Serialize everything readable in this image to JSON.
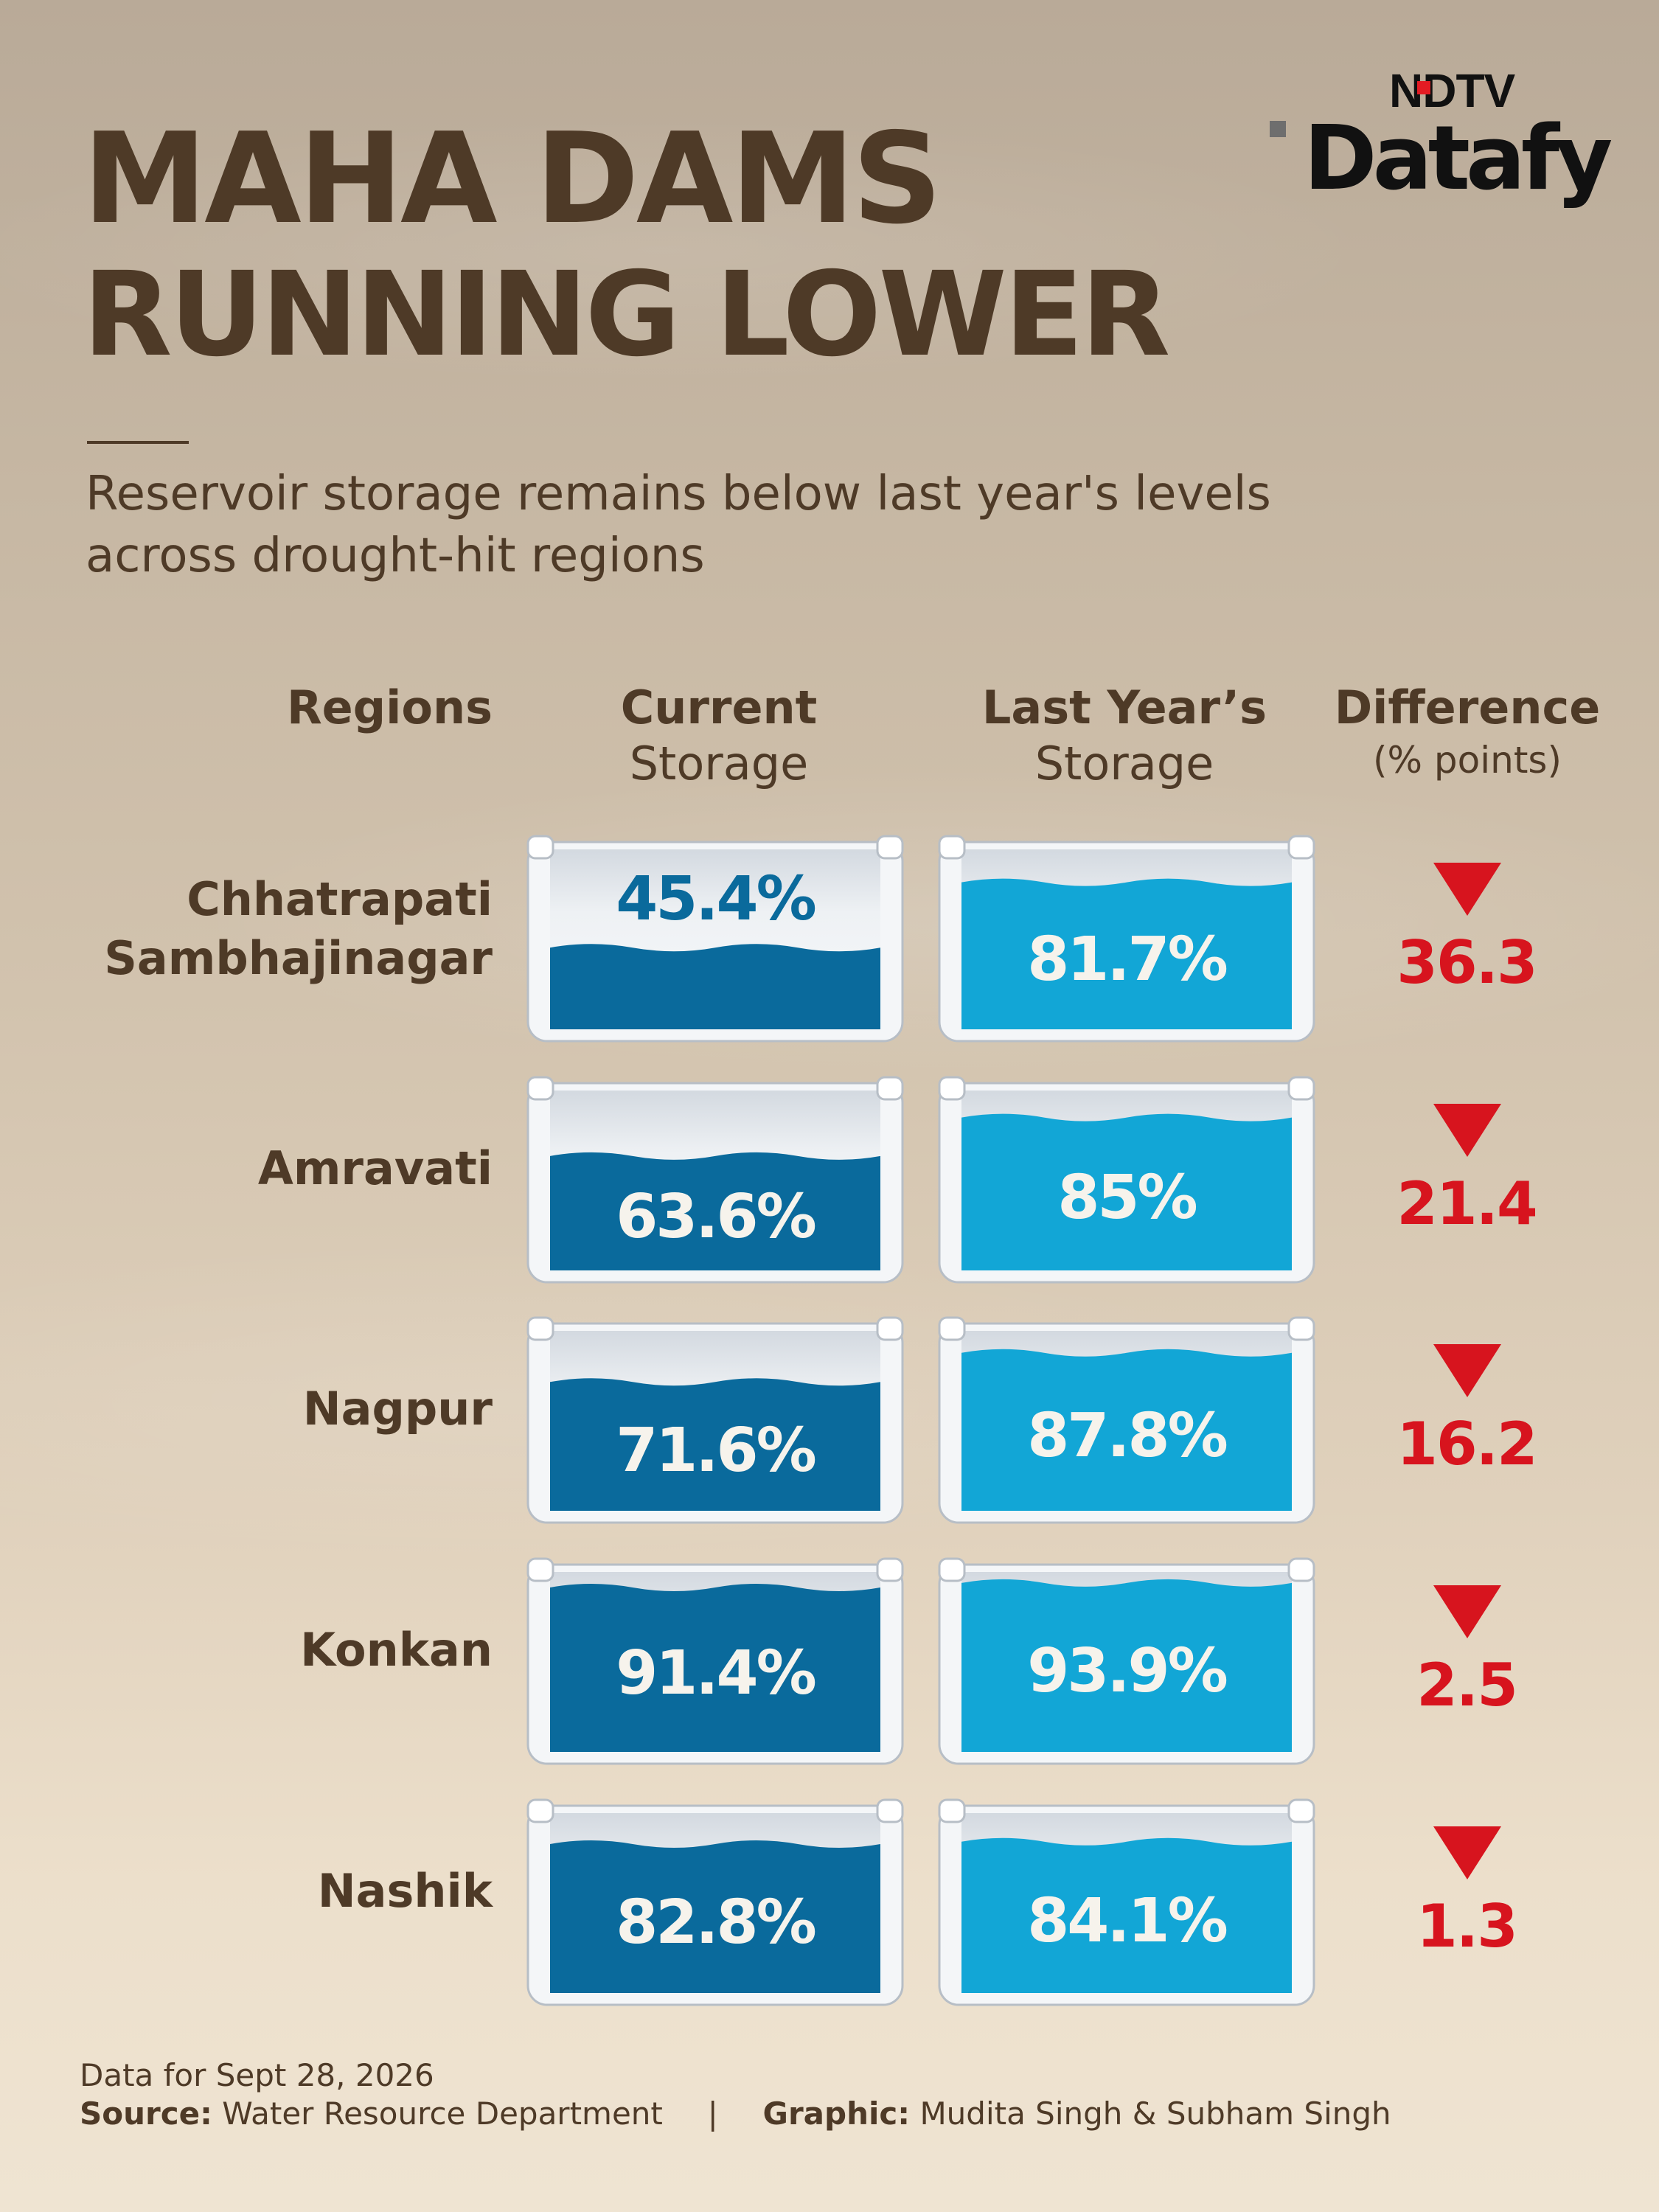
{
  "title": {
    "line1": "MAHA DAMS",
    "line2": "RUNNING LOWER"
  },
  "logo": {
    "top": "NDTV",
    "bottom": "Datafy"
  },
  "subtitle": {
    "line1": "Reservoir storage remains below last year's levels",
    "line2": "across drought-hit regions"
  },
  "headers": {
    "regions": "Regions",
    "current_l1": "Current",
    "current_l2": "Storage",
    "last_l1": "Last Year’s",
    "last_l2": "Storage",
    "diff_l1": "Difference",
    "diff_l2": "(% points)"
  },
  "rows": [
    {
      "region_l1": "Chhatrapati",
      "region_l2": "Sambhajinagar",
      "current_label": "45.4%",
      "last_label": "81.7%",
      "diff_label": "36.3"
    },
    {
      "region_l1": "Amravati",
      "region_l2": "",
      "current_label": "63.6%",
      "last_label": "85%",
      "diff_label": "21.4"
    },
    {
      "region_l1": "Nagpur",
      "region_l2": "",
      "current_label": "71.6%",
      "last_label": "87.8%",
      "diff_label": "16.2"
    },
    {
      "region_l1": "Konkan",
      "region_l2": "",
      "current_label": "91.4%",
      "last_label": "93.9%",
      "diff_label": "2.5"
    },
    {
      "region_l1": "Nashik",
      "region_l2": "",
      "current_label": "82.8%",
      "last_label": "84.1%",
      "diff_label": "1.3"
    }
  ],
  "chart_data": {
    "type": "table",
    "title": "MAHA DAMS RUNNING LOWER",
    "subtitle": "Reservoir storage remains below last year's levels across drought-hit regions",
    "columns": [
      "Regions",
      "Current Storage",
      "Last Year’s Storage",
      "Difference (% points)"
    ],
    "categories": [
      "Chhatrapati Sambhajinagar",
      "Amravati",
      "Nagpur",
      "Konkan",
      "Nashik"
    ],
    "series": [
      {
        "name": "Current Storage",
        "values": [
          45.4,
          63.6,
          71.6,
          91.4,
          82.8
        ]
      },
      {
        "name": "Last Year’s Storage",
        "values": [
          81.7,
          85,
          87.8,
          93.9,
          84.1
        ]
      },
      {
        "name": "Difference (% points)",
        "values": [
          36.3,
          21.4,
          16.2,
          2.5,
          1.3
        ]
      }
    ],
    "unit": "%",
    "difference_direction": "down"
  },
  "colors": {
    "brown_text": "#4e3a27",
    "current_water": "#0a6a9c",
    "last_water": "#12a6d6",
    "down_red": "#d7141e",
    "tank_frame": "#f4f6f8"
  },
  "footer": {
    "date": "Data for Sept 28, 2026",
    "source_label": "Source:",
    "source_value": "Water Resource Department",
    "separator": "|",
    "graphic_label": "Graphic:",
    "graphic_value": "Mudita Singh & Subham Singh"
  }
}
